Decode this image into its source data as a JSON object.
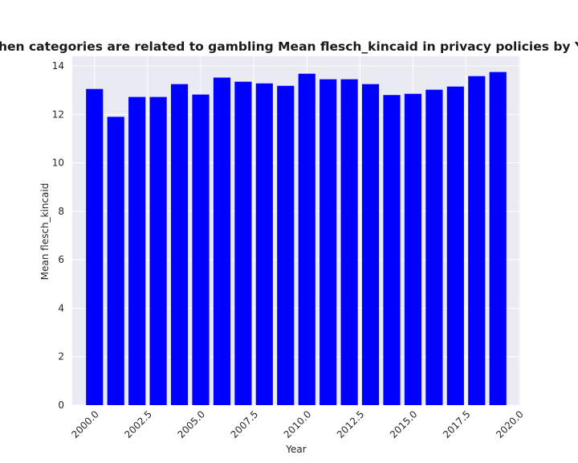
{
  "chart_data": {
    "type": "bar",
    "title": "when categories are related to gambling Mean flesch_kincaid in privacy policies by Year",
    "xlabel": "Year",
    "ylabel": "Mean flesch_kincaid",
    "x": [
      2000,
      2001,
      2002,
      2003,
      2004,
      2005,
      2006,
      2007,
      2008,
      2009,
      2010,
      2011,
      2012,
      2013,
      2014,
      2015,
      2016,
      2017,
      2018,
      2019
    ],
    "values": [
      13.05,
      11.9,
      12.72,
      12.72,
      13.25,
      12.82,
      13.52,
      13.35,
      13.28,
      13.18,
      13.68,
      13.45,
      13.45,
      13.25,
      12.8,
      12.85,
      13.02,
      13.15,
      13.58,
      13.75
    ],
    "xlim": [
      1998.95,
      2020.05
    ],
    "ylim": [
      0,
      14.4
    ],
    "x_ticks": [
      "2000.0",
      "2002.5",
      "2005.0",
      "2007.5",
      "2010.0",
      "2012.5",
      "2015.0",
      "2017.5",
      "2020.0"
    ],
    "x_tick_values": [
      2000,
      2002.5,
      2005,
      2007.5,
      2010,
      2012.5,
      2015,
      2017.5,
      2020
    ],
    "y_ticks": [
      "0",
      "2",
      "4",
      "6",
      "8",
      "10",
      "12",
      "14"
    ],
    "y_tick_values": [
      0,
      2,
      4,
      6,
      8,
      10,
      12,
      14
    ],
    "bar_color": "#0000ff",
    "background_color": "#eaeaf2",
    "grid": true
  }
}
